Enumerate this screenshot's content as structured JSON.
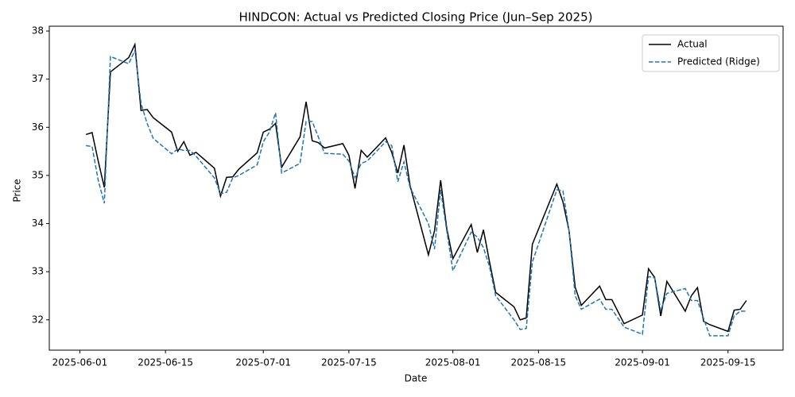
{
  "chart_data": {
    "type": "line",
    "title": "HINDCON: Actual vs Predicted Closing Price (Jun–Sep 2025)",
    "xlabel": "Date",
    "ylabel": "Price",
    "x": [
      "2025-06-02",
      "2025-06-03",
      "2025-06-04",
      "2025-06-05",
      "2025-06-06",
      "2025-06-09",
      "2025-06-10",
      "2025-06-11",
      "2025-06-12",
      "2025-06-13",
      "2025-06-16",
      "2025-06-17",
      "2025-06-18",
      "2025-06-19",
      "2025-06-20",
      "2025-06-23",
      "2025-06-24",
      "2025-06-25",
      "2025-06-26",
      "2025-06-27",
      "2025-06-30",
      "2025-07-01",
      "2025-07-02",
      "2025-07-03",
      "2025-07-04",
      "2025-07-07",
      "2025-07-08",
      "2025-07-09",
      "2025-07-10",
      "2025-07-11",
      "2025-07-14",
      "2025-07-15",
      "2025-07-16",
      "2025-07-17",
      "2025-07-18",
      "2025-07-21",
      "2025-07-22",
      "2025-07-23",
      "2025-07-24",
      "2025-07-25",
      "2025-07-28",
      "2025-07-29",
      "2025-07-30",
      "2025-07-31",
      "2025-08-01",
      "2025-08-04",
      "2025-08-05",
      "2025-08-06",
      "2025-08-07",
      "2025-08-08",
      "2025-08-11",
      "2025-08-12",
      "2025-08-13",
      "2025-08-14",
      "2025-08-18",
      "2025-08-19",
      "2025-08-20",
      "2025-08-21",
      "2025-08-22",
      "2025-08-25",
      "2025-08-26",
      "2025-08-27",
      "2025-08-29",
      "2025-09-01",
      "2025-09-02",
      "2025-09-03",
      "2025-09-04",
      "2025-09-05",
      "2025-09-08",
      "2025-09-09",
      "2025-09-10",
      "2025-09-11",
      "2025-09-12",
      "2025-09-15",
      "2025-09-16",
      "2025-09-17",
      "2025-09-18"
    ],
    "series": [
      {
        "name": "Actual",
        "color": "#000000",
        "dash": false,
        "values": [
          35.85,
          35.89,
          35.3,
          34.75,
          37.15,
          37.45,
          37.72,
          36.35,
          36.37,
          36.2,
          35.9,
          35.5,
          35.7,
          35.42,
          35.48,
          35.15,
          34.57,
          34.96,
          34.97,
          35.13,
          35.47,
          35.9,
          35.96,
          36.08,
          35.17,
          35.8,
          36.53,
          35.72,
          35.68,
          35.57,
          35.66,
          35.42,
          34.73,
          35.52,
          35.38,
          35.78,
          35.48,
          35.05,
          35.63,
          34.79,
          33.35,
          33.85,
          34.9,
          33.9,
          33.27,
          33.98,
          33.4,
          33.87,
          33.2,
          32.57,
          32.27,
          32.0,
          32.04,
          33.57,
          34.82,
          34.45,
          33.85,
          32.68,
          32.3,
          32.7,
          32.42,
          32.42,
          31.92,
          32.1,
          33.06,
          32.88,
          32.08,
          32.8,
          32.18,
          32.5,
          32.67,
          31.97,
          31.9,
          31.76,
          32.2,
          32.22,
          32.4
        ]
      },
      {
        "name": "Predicted (Ridge)",
        "color": "#1f77b4",
        "dash": true,
        "values": [
          35.62,
          35.6,
          34.9,
          34.42,
          37.47,
          37.32,
          37.6,
          36.5,
          36.08,
          35.77,
          35.45,
          35.55,
          35.52,
          35.52,
          35.4,
          34.95,
          34.62,
          34.65,
          34.95,
          35.0,
          35.22,
          35.7,
          35.9,
          36.3,
          35.05,
          35.25,
          36.12,
          36.12,
          35.8,
          35.46,
          35.44,
          35.3,
          34.95,
          35.25,
          35.3,
          35.7,
          35.62,
          34.87,
          35.28,
          34.75,
          34.0,
          33.47,
          34.7,
          33.85,
          33.02,
          33.82,
          33.72,
          33.5,
          33.1,
          32.5,
          32.0,
          31.8,
          31.82,
          33.2,
          34.7,
          34.68,
          33.85,
          32.5,
          32.22,
          32.43,
          32.22,
          32.22,
          31.85,
          31.7,
          32.9,
          32.87,
          32.2,
          32.55,
          32.65,
          32.4,
          32.4,
          32.03,
          31.67,
          31.67,
          32.08,
          32.18,
          32.18
        ]
      }
    ],
    "xlim": [
      "2025-05-27",
      "2025-09-24"
    ],
    "xticks": [
      "2025-06-01",
      "2025-06-15",
      "2025-07-01",
      "2025-07-15",
      "2025-08-01",
      "2025-08-15",
      "2025-09-01",
      "2025-09-15"
    ],
    "ylim": [
      31.37,
      38.1
    ],
    "yticks": [
      32,
      33,
      34,
      35,
      36,
      37,
      38
    ],
    "legend": "upper right",
    "grid": false
  }
}
